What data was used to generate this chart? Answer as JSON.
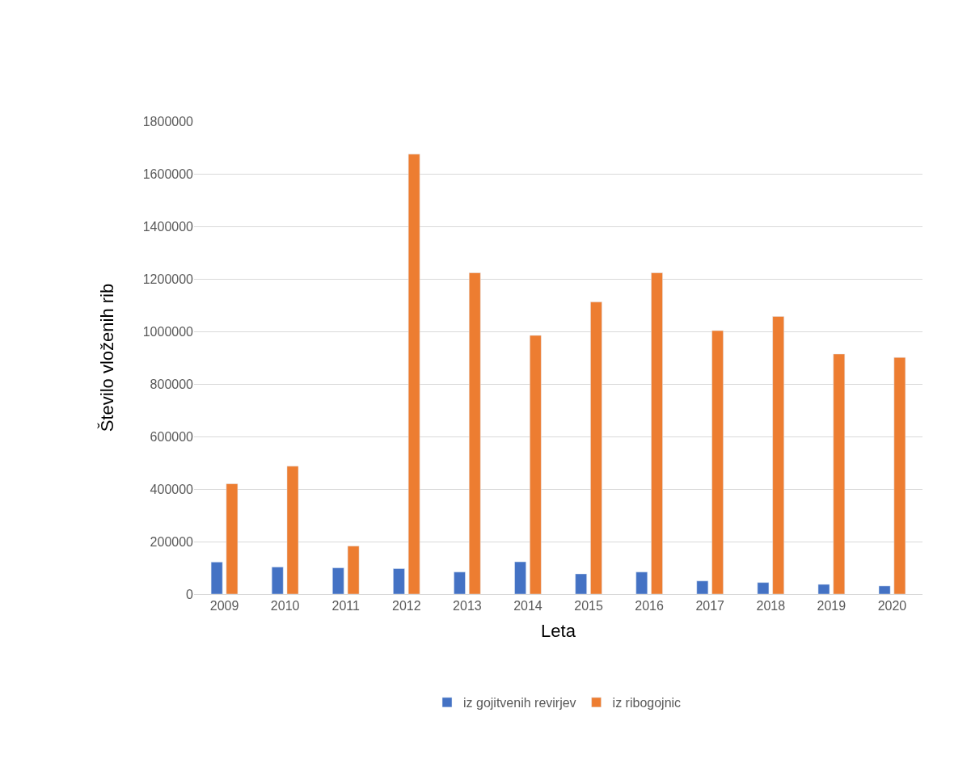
{
  "chart_data": {
    "type": "bar",
    "xlabel": "Leta",
    "ylabel": "Število vloženih rib",
    "categories": [
      "2009",
      "2010",
      "2011",
      "2012",
      "2013",
      "2014",
      "2015",
      "2016",
      "2017",
      "2018",
      "2019",
      "2020"
    ],
    "series": [
      {
        "name": "iz gojitvenih revirjev",
        "color": "#4472c4",
        "values": [
          122000,
          103000,
          100000,
          97000,
          84000,
          123000,
          77000,
          84000,
          50000,
          44000,
          37000,
          31000
        ]
      },
      {
        "name": "iz ribogojnic",
        "color": "#ed7d31",
        "values": [
          420000,
          487000,
          183000,
          1675000,
          1223000,
          985000,
          1112000,
          1223000,
          1003000,
          1057000,
          914000,
          901000
        ]
      }
    ],
    "ylim": [
      0,
      1800000
    ],
    "yticks": [
      0,
      200000,
      400000,
      600000,
      800000,
      1000000,
      1200000,
      1400000,
      1600000,
      1800000
    ],
    "grid": "y",
    "legend": "bottom"
  }
}
